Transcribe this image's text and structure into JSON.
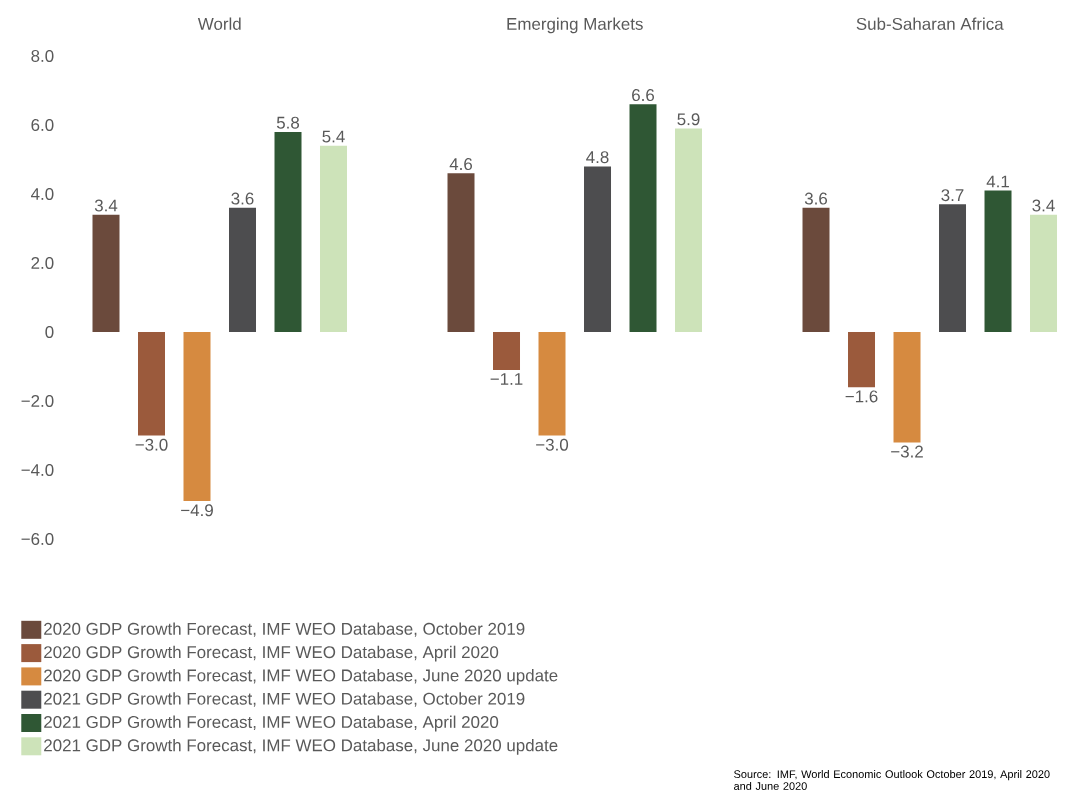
{
  "chart_data": {
    "type": "bar",
    "categories": [
      "World",
      "Emerging Markets",
      "Sub-Saharan Africa"
    ],
    "series": [
      {
        "name": "2020 GDP Growth Forecast, IMF WEO Database, October 2019",
        "color": "#6b4a3c",
        "values": [
          3.4,
          4.6,
          3.6
        ],
        "value_labels": [
          "3.4",
          "4.6",
          "3.6"
        ]
      },
      {
        "name": "2020 GDP Growth Forecast, IMF WEO Database, April 2020",
        "color": "#9b5a3c",
        "values": [
          -3.0,
          -1.1,
          -1.6
        ],
        "value_labels": [
          "−3.0",
          "−1.1",
          "−1.6"
        ]
      },
      {
        "name": "2020 GDP Growth Forecast, IMF WEO Database, June 2020 update",
        "color": "#d68a40",
        "values": [
          -4.9,
          -3.0,
          -3.2
        ],
        "value_labels": [
          "−4.9",
          "−3.0",
          "−3.2"
        ]
      },
      {
        "name": "2021 GDP Growth Forecast, IMF WEO Database, October 2019",
        "color": "#4d4d4f",
        "values": [
          3.6,
          4.8,
          3.7
        ],
        "value_labels": [
          "3.6",
          "4.8",
          "3.7"
        ]
      },
      {
        "name": "2021 GDP Growth Forecast, IMF WEO Database, April 2020",
        "color": "#2f5734",
        "values": [
          5.8,
          6.6,
          4.1
        ],
        "value_labels": [
          "5.8",
          "6.6",
          "4.1"
        ]
      },
      {
        "name": "2021 GDP Growth Forecast, IMF WEO Database, June 2020 update",
        "color": "#cde3b9",
        "values": [
          5.4,
          5.9,
          3.4
        ],
        "value_labels": [
          "5.4",
          "5.9",
          "3.4"
        ]
      }
    ],
    "ylim": [
      -6,
      8
    ],
    "yticks": [
      {
        "value": 8,
        "label": "8.0"
      },
      {
        "value": 6,
        "label": "6.0"
      },
      {
        "value": 4,
        "label": "4.0"
      },
      {
        "value": 2,
        "label": "2.0"
      },
      0,
      {
        "value": -2,
        "label": "−2.0"
      },
      {
        "value": -4,
        "label": "−4.0"
      },
      {
        "value": -6,
        "label": "−6.0"
      }
    ],
    "legend": "bottom left",
    "grid": false,
    "annotations": [
      "Source: IMF, World Economic Outlook October 2019, April 2020 and June 2020"
    ]
  }
}
